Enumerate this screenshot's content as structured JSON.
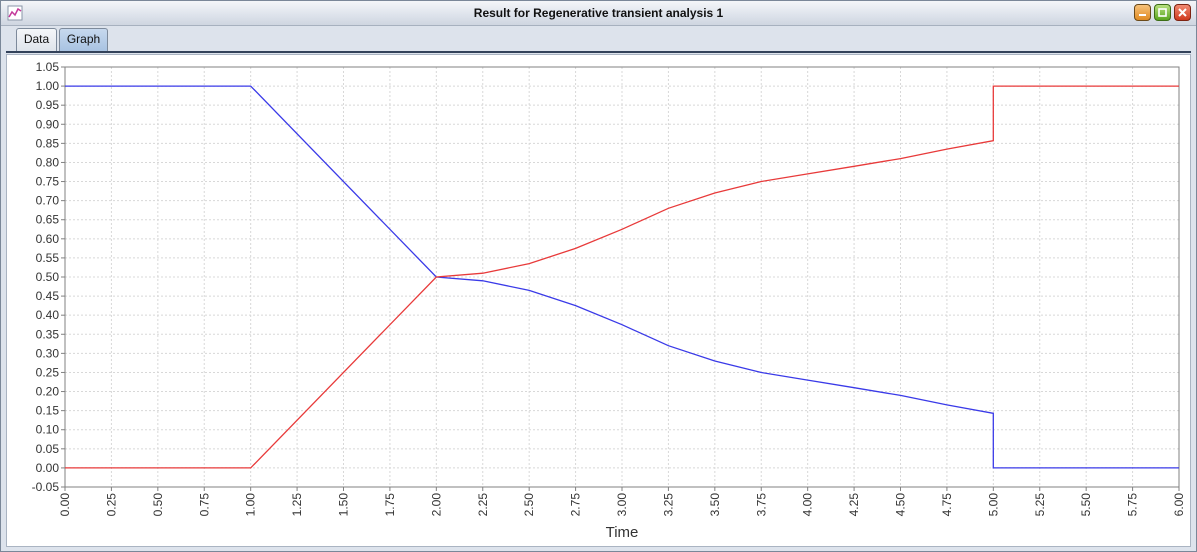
{
  "window": {
    "title": "Result for Regenerative transient analysis 1",
    "icon": "chart-app-icon",
    "buttons": [
      "minimize-icon",
      "maximize-icon",
      "close-icon"
    ]
  },
  "tabs": [
    {
      "label": "Data",
      "selected": false
    },
    {
      "label": "Graph",
      "selected": true
    }
  ],
  "chart_data": {
    "type": "line",
    "xlabel": "Time",
    "ylabel": "",
    "xlim": [
      0,
      6
    ],
    "ylim": [
      -0.05,
      1.05
    ],
    "x_ticks": [
      "0.00",
      "0.25",
      "0.50",
      "0.75",
      "1.00",
      "1.25",
      "1.50",
      "1.75",
      "2.00",
      "2.25",
      "2.50",
      "2.75",
      "3.00",
      "3.25",
      "3.50",
      "3.75",
      "4.00",
      "4.25",
      "4.50",
      "4.75",
      "5.00",
      "5.25",
      "5.50",
      "5.75",
      "6.00"
    ],
    "y_ticks": [
      "1.05",
      "1.00",
      "0.95",
      "0.90",
      "0.85",
      "0.80",
      "0.75",
      "0.70",
      "0.65",
      "0.60",
      "0.55",
      "0.50",
      "0.45",
      "0.40",
      "0.35",
      "0.30",
      "0.25",
      "0.20",
      "0.15",
      "0.10",
      "0.05",
      "0.00",
      "-0.05"
    ],
    "grid": true,
    "series": [
      {
        "color": "#3a3ae8",
        "x": [
          0,
          1.0,
          2.0,
          2.25,
          2.5,
          2.75,
          3.0,
          3.25,
          3.5,
          3.75,
          4.0,
          4.25,
          4.5,
          4.75,
          5.0,
          5.0,
          6.0
        ],
        "y": [
          1.0,
          1.0,
          0.5,
          0.49,
          0.465,
          0.425,
          0.375,
          0.32,
          0.28,
          0.25,
          0.23,
          0.21,
          0.19,
          0.165,
          0.143,
          0.0,
          0.0
        ]
      },
      {
        "color": "#e83a3a",
        "x": [
          0,
          1.0,
          2.0,
          2.25,
          2.5,
          2.75,
          3.0,
          3.25,
          3.5,
          3.75,
          4.0,
          4.25,
          4.5,
          4.75,
          5.0,
          5.0,
          6.0
        ],
        "y": [
          0.0,
          0.0,
          0.5,
          0.51,
          0.535,
          0.575,
          0.625,
          0.68,
          0.72,
          0.75,
          0.77,
          0.79,
          0.81,
          0.835,
          0.857,
          1.0,
          1.0
        ]
      }
    ]
  }
}
